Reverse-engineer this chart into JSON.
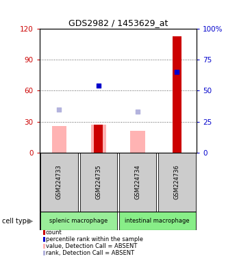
{
  "title": "GDS2982 / 1453629_at",
  "samples": [
    "GSM224733",
    "GSM224735",
    "GSM224734",
    "GSM224736"
  ],
  "cell_types": [
    "splenic macrophage",
    "splenic macrophage",
    "intestinal macrophage",
    "intestinal macrophage"
  ],
  "count_values": [
    0,
    27,
    0,
    113
  ],
  "value_absent": [
    26,
    27,
    21,
    0
  ],
  "rank_absent": [
    42,
    0,
    40,
    0
  ],
  "percentile_rank": [
    0,
    54,
    0,
    65
  ],
  "left_ylim": [
    0,
    120
  ],
  "right_ylim": [
    0,
    100
  ],
  "left_yticks": [
    0,
    30,
    60,
    90,
    120
  ],
  "right_yticks": [
    0,
    25,
    50,
    75,
    100
  ],
  "right_yticklabels": [
    "0",
    "25",
    "50",
    "75",
    "100%"
  ],
  "bar_color_red": "#cc0000",
  "bar_color_pink": "#ffb3b3",
  "dot_color_blue": "#0000cc",
  "dot_color_lightblue": "#b3b3dd",
  "ct_color_splenic": "#99ee99",
  "ct_color_intestinal": "#88ee88",
  "sample_box_color": "#cccccc",
  "ylabel_left_color": "#cc0000",
  "ylabel_right_color": "#0000cc",
  "grid_color": "#555555"
}
